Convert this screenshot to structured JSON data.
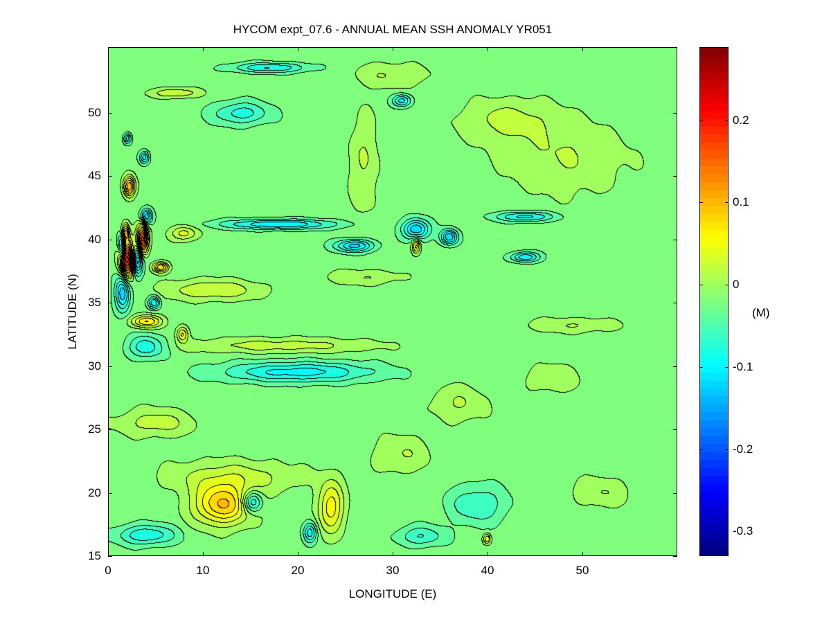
{
  "chart_data": {
    "type": "heatmap",
    "subtype": "filled-contour",
    "title": "HYCOM expt_07.6 - ANNUAL MEAN SSH ANOMALY YR051",
    "xlabel": "LONGITUDE (E)",
    "ylabel": "LATITUDE (N)",
    "xlim": [
      0,
      60
    ],
    "ylim": [
      15,
      55.2
    ],
    "xticks": [
      0,
      10,
      20,
      30,
      40,
      50
    ],
    "yticks": [
      15,
      20,
      25,
      30,
      35,
      40,
      45,
      50
    ],
    "colorbar": {
      "label": "(M)",
      "clim": [
        -0.33,
        0.289
      ],
      "ticks": [
        0.2,
        0.1,
        0,
        -0.1,
        -0.2,
        -0.3
      ],
      "tick_labels": [
        "0.2",
        "0.1",
        "0",
        "-0.1",
        "-0.2",
        "-0.3"
      ],
      "colormap": "jet"
    },
    "contour_interval": 0.02,
    "background_value": -0.02,
    "features": [
      {
        "lon": 2,
        "lat": 38.4,
        "value": 0.23,
        "rlon": 0.8,
        "rlat": 1.4
      },
      {
        "lon": 3.6,
        "lat": 40,
        "value": 0.2,
        "rlon": 0.6,
        "rlat": 1.1
      },
      {
        "lon": 1.8,
        "lat": 40.5,
        "value": 0.12,
        "rlon": 0.4,
        "rlat": 0.7
      },
      {
        "lon": 2.2,
        "lat": 44.2,
        "value": 0.13,
        "rlon": 0.6,
        "rlat": 0.8
      },
      {
        "lon": 5.5,
        "lat": 37.8,
        "value": 0.11,
        "rlon": 0.8,
        "rlat": 0.4
      },
      {
        "lon": 4,
        "lat": 33.5,
        "value": 0.09,
        "rlon": 1.6,
        "rlat": 0.5
      },
      {
        "lon": 3,
        "lat": 38.3,
        "value": -0.16,
        "rlon": 0.6,
        "rlat": 1.1
      },
      {
        "lon": 1.4,
        "lat": 39.6,
        "value": -0.12,
        "rlon": 0.4,
        "rlat": 0.9
      },
      {
        "lon": 1.5,
        "lat": 35.8,
        "value": -0.11,
        "rlon": 0.8,
        "rlat": 1.5
      },
      {
        "lon": 4,
        "lat": 41.8,
        "value": -0.11,
        "rlon": 0.6,
        "rlat": 0.6
      },
      {
        "lon": 4.8,
        "lat": 35,
        "value": -0.09,
        "rlon": 0.6,
        "rlat": 0.5
      },
      {
        "lon": 2,
        "lat": 48,
        "value": -0.08,
        "rlon": 0.4,
        "rlat": 0.4
      },
      {
        "lon": 3.8,
        "lat": 46.5,
        "value": -0.08,
        "rlon": 0.5,
        "rlat": 0.5
      },
      {
        "lon": 8,
        "lat": 40.5,
        "value": 0.06,
        "rlon": 1.4,
        "rlat": 0.6
      },
      {
        "lon": 18,
        "lat": 41.2,
        "value": -0.09,
        "rlon": 6,
        "rlat": 0.4
      },
      {
        "lon": 26,
        "lat": 39.5,
        "value": -0.1,
        "rlon": 2,
        "rlat": 0.5
      },
      {
        "lon": 32.5,
        "lat": 40.8,
        "value": -0.11,
        "rlon": 1.4,
        "rlat": 0.8
      },
      {
        "lon": 36,
        "lat": 40.2,
        "value": -0.11,
        "rlon": 0.9,
        "rlat": 0.6
      },
      {
        "lon": 44,
        "lat": 41.8,
        "value": -0.08,
        "rlon": 3,
        "rlat": 0.4
      },
      {
        "lon": 44,
        "lat": 38.6,
        "value": -0.09,
        "rlon": 1.5,
        "rlat": 0.4
      },
      {
        "lon": 32.5,
        "lat": 39.5,
        "value": 0.08,
        "rlon": 0.45,
        "rlat": 0.6
      },
      {
        "lon": 11,
        "lat": 36,
        "value": 0.05,
        "rlon": 5,
        "rlat": 0.8
      },
      {
        "lon": 27,
        "lat": 37,
        "value": 0.03,
        "rlon": 4,
        "rlat": 0.6
      },
      {
        "lon": 20,
        "lat": 29.5,
        "value": -0.08,
        "rlon": 8,
        "rlat": 0.8
      },
      {
        "lon": 4,
        "lat": 31.5,
        "value": -0.07,
        "rlon": 2,
        "rlat": 0.9
      },
      {
        "lon": 18,
        "lat": 31.6,
        "value": 0.04,
        "rlon": 10,
        "rlat": 0.6
      },
      {
        "lon": 7.8,
        "lat": 32.5,
        "value": 0.07,
        "rlon": 0.6,
        "rlat": 0.6
      },
      {
        "lon": 17,
        "lat": 53.6,
        "value": -0.07,
        "rlon": 4,
        "rlat": 0.4
      },
      {
        "lon": 14,
        "lat": 50,
        "value": -0.06,
        "rlon": 3,
        "rlat": 0.9
      },
      {
        "lon": 31,
        "lat": 51,
        "value": -0.08,
        "rlon": 1,
        "rlat": 0.5
      },
      {
        "lon": 7,
        "lat": 51.6,
        "value": 0.05,
        "rlon": 2.5,
        "rlat": 0.4
      },
      {
        "lon": 12,
        "lat": 19,
        "value": 0.11,
        "rlon": 3,
        "rlat": 1.6
      },
      {
        "lon": 15.2,
        "lat": 19.2,
        "value": -0.09,
        "rlon": 1,
        "rlat": 0.8
      },
      {
        "lon": 23.5,
        "lat": 18.8,
        "value": 0.08,
        "rlon": 1.4,
        "rlat": 2
      },
      {
        "lon": 21.3,
        "lat": 16.8,
        "value": -0.08,
        "rlon": 0.7,
        "rlat": 0.8
      },
      {
        "lon": 4,
        "lat": 16.6,
        "value": -0.07,
        "rlon": 3,
        "rlat": 0.8
      },
      {
        "lon": 40,
        "lat": 16.3,
        "value": 0.07,
        "rlon": 0.4,
        "rlat": 0.4
      },
      {
        "lon": 13,
        "lat": 21.2,
        "value": 0.04,
        "rlon": 7,
        "rlat": 1.3
      },
      {
        "lon": 5,
        "lat": 25.5,
        "value": 0.04,
        "rlon": 4,
        "rlat": 1.1
      },
      {
        "lon": 48,
        "lat": 46.5,
        "value": 0.03,
        "rlon": 7,
        "rlat": 3
      },
      {
        "lon": 37,
        "lat": 27,
        "value": 0.03,
        "rlon": 3,
        "rlat": 1.5
      },
      {
        "lon": 39,
        "lat": 19,
        "value": -0.05,
        "rlon": 3,
        "rlat": 1.5
      },
      {
        "lon": 27,
        "lat": 46,
        "value": 0.03,
        "rlon": 1.6,
        "rlat": 4
      },
      {
        "lon": 42,
        "lat": 49.5,
        "value": 0.035,
        "rlon": 5,
        "rlat": 1.6
      },
      {
        "lon": 30,
        "lat": 53,
        "value": 0.03,
        "rlon": 4,
        "rlat": 1
      },
      {
        "lon": 49,
        "lat": 33.2,
        "value": 0.03,
        "rlon": 5,
        "rlat": 0.6
      },
      {
        "lon": 31,
        "lat": 23,
        "value": 0.03,
        "rlon": 3,
        "rlat": 1.5
      },
      {
        "lon": 47,
        "lat": 29,
        "value": 0.025,
        "rlon": 3,
        "rlat": 1.2
      },
      {
        "lon": 33,
        "lat": 16.5,
        "value": -0.05,
        "rlon": 2.5,
        "rlat": 0.8
      },
      {
        "lon": 52,
        "lat": 20,
        "value": 0.03,
        "rlon": 3,
        "rlat": 1.2
      }
    ]
  }
}
